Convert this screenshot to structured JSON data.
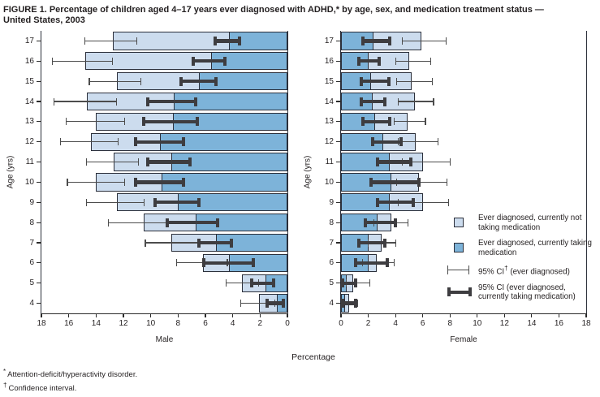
{
  "figure": {
    "title_line1": "FIGURE 1. Percentage of children aged 4–17 years ever diagnosed with ADHD,* by age, sex, and medication treatment status —",
    "title_line2": "United States, 2003",
    "footnotes": [
      {
        "marker": "*",
        "text": "Attention-deficit/hyperactivity disorder."
      },
      {
        "marker": "†",
        "text": "Confidence interval."
      }
    ]
  },
  "legend": {
    "items": [
      {
        "swatch": "light-box",
        "label": "Ever diagnosed, currently not taking medication"
      },
      {
        "swatch": "dark-box",
        "label": "Ever diagnosed, currently taking medication"
      },
      {
        "swatch": "thin-ci",
        "label": "95% CI† (ever diagnosed)"
      },
      {
        "swatch": "thick-ci",
        "label": "95% CI (ever diagnosed, currently taking medication)"
      }
    ]
  },
  "colors": {
    "light_blue": "#ccdcee",
    "medium_blue": "#7db3d9",
    "bar_border": "#2b2f3a",
    "axis": "#2b2b2b",
    "ci_thin": "#4c4c4c",
    "ci_thick": "#3e3d40",
    "text": "#231f20"
  },
  "chart_data": {
    "type": "bar",
    "variant": "paired horizontal stacked bars (population-pyramid style) with 95% CI error bars",
    "title": "FIGURE 1. Percentage of children aged 4–17 years ever diagnosed with ADHD,* by age, sex, and medication treatment status — United States, 2003",
    "xlabel": "Percentage",
    "ylabel": "Age (yrs)",
    "x_axis": {
      "min": 0,
      "max": 18,
      "ticks": [
        0,
        2,
        4,
        6,
        8,
        10,
        12,
        14,
        16,
        18
      ]
    },
    "ages": [
      17,
      16,
      15,
      14,
      13,
      12,
      11,
      10,
      9,
      8,
      7,
      6,
      5,
      4
    ],
    "series": [
      "Ever diagnosed, currently not taking medication",
      "Ever diagnosed, currently taking medication"
    ],
    "panels": [
      {
        "name": "Male",
        "side": "left",
        "tick_order_left_to_right": [
          18,
          16,
          14,
          12,
          10,
          8,
          6,
          4,
          2,
          0
        ],
        "rows": [
          {
            "age": 17,
            "ever_diagnosed_pct": 12.8,
            "taking_medication_pct": 4.3,
            "ci_ever": [
              11.0,
              14.8
            ],
            "ci_medication": [
              3.5,
              5.3
            ]
          },
          {
            "age": 16,
            "ever_diagnosed_pct": 14.8,
            "taking_medication_pct": 5.6,
            "ci_ever": [
              12.8,
              17.2
            ],
            "ci_medication": [
              4.6,
              6.9
            ]
          },
          {
            "age": 15,
            "ever_diagnosed_pct": 12.5,
            "taking_medication_pct": 6.5,
            "ci_ever": [
              10.7,
              14.5
            ],
            "ci_medication": [
              5.2,
              7.8
            ]
          },
          {
            "age": 14,
            "ever_diagnosed_pct": 14.7,
            "taking_medication_pct": 8.3,
            "ci_ever": [
              12.5,
              17.1
            ],
            "ci_medication": [
              6.7,
              10.2
            ]
          },
          {
            "age": 13,
            "ever_diagnosed_pct": 14.0,
            "taking_medication_pct": 8.4,
            "ci_ever": [
              11.9,
              16.2
            ],
            "ci_medication": [
              6.6,
              10.5
            ]
          },
          {
            "age": 12,
            "ever_diagnosed_pct": 14.4,
            "taking_medication_pct": 9.3,
            "ci_ever": [
              12.4,
              16.6
            ],
            "ci_medication": [
              7.6,
              11.1
            ]
          },
          {
            "age": 11,
            "ever_diagnosed_pct": 12.7,
            "taking_medication_pct": 8.5,
            "ci_ever": [
              10.9,
              14.7
            ],
            "ci_medication": [
              7.1,
              10.2
            ]
          },
          {
            "age": 10,
            "ever_diagnosed_pct": 14.0,
            "taking_medication_pct": 9.2,
            "ci_ever": [
              11.9,
              16.1
            ],
            "ci_medication": [
              7.6,
              11.1
            ]
          },
          {
            "age": 9,
            "ever_diagnosed_pct": 12.5,
            "taking_medication_pct": 8.0,
            "ci_ever": [
              10.5,
              14.7
            ],
            "ci_medication": [
              6.5,
              9.7
            ]
          },
          {
            "age": 8,
            "ever_diagnosed_pct": 10.5,
            "taking_medication_pct": 6.7,
            "ci_ever": [
              8.7,
              13.1
            ],
            "ci_medication": [
              5.1,
              8.8
            ]
          },
          {
            "age": 7,
            "ever_diagnosed_pct": 8.5,
            "taking_medication_pct": 5.2,
            "ci_ever": [
              6.4,
              10.4
            ],
            "ci_medication": [
              4.1,
              6.5
            ]
          },
          {
            "age": 6,
            "ever_diagnosed_pct": 6.2,
            "taking_medication_pct": 4.3,
            "ci_ever": [
              4.4,
              8.1
            ],
            "ci_medication": [
              2.5,
              6.1
            ]
          },
          {
            "age": 5,
            "ever_diagnosed_pct": 3.3,
            "taking_medication_pct": 1.6,
            "ci_ever": [
              2.1,
              4.5
            ],
            "ci_medication": [
              1.0,
              2.6
            ]
          },
          {
            "age": 4,
            "ever_diagnosed_pct": 2.1,
            "taking_medication_pct": 0.8,
            "ci_ever": [
              0.9,
              3.4
            ],
            "ci_medication": [
              0.3,
              1.5
            ]
          }
        ]
      },
      {
        "name": "Female",
        "side": "right",
        "tick_order_left_to_right": [
          0,
          2,
          4,
          6,
          8,
          10,
          12,
          14,
          16,
          18
        ],
        "rows": [
          {
            "age": 17,
            "ever_diagnosed_pct": 5.9,
            "taking_medication_pct": 2.4,
            "ci_ever": [
              4.5,
              7.7
            ],
            "ci_medication": [
              1.6,
              3.6
            ]
          },
          {
            "age": 16,
            "ever_diagnosed_pct": 5.0,
            "taking_medication_pct": 2.0,
            "ci_ever": [
              4.0,
              6.6
            ],
            "ci_medication": [
              1.3,
              2.8
            ]
          },
          {
            "age": 15,
            "ever_diagnosed_pct": 5.2,
            "taking_medication_pct": 2.2,
            "ci_ever": [
              4.1,
              6.7
            ],
            "ci_medication": [
              1.5,
              3.5
            ]
          },
          {
            "age": 14,
            "ever_diagnosed_pct": 5.4,
            "taking_medication_pct": 2.3,
            "ci_ever": [
              4.2,
              6.8
            ],
            "ci_medication": [
              1.5,
              3.2
            ]
          },
          {
            "age": 13,
            "ever_diagnosed_pct": 4.9,
            "taking_medication_pct": 2.5,
            "ci_ever": [
              3.9,
              6.2
            ],
            "ci_medication": [
              1.6,
              3.6
            ]
          },
          {
            "age": 12,
            "ever_diagnosed_pct": 5.5,
            "taking_medication_pct": 3.1,
            "ci_ever": [
              4.2,
              7.1
            ],
            "ci_medication": [
              2.3,
              4.4
            ]
          },
          {
            "age": 11,
            "ever_diagnosed_pct": 6.0,
            "taking_medication_pct": 3.6,
            "ci_ever": [
              4.5,
              8.0
            ],
            "ci_medication": [
              2.7,
              5.1
            ]
          },
          {
            "age": 10,
            "ever_diagnosed_pct": 5.7,
            "taking_medication_pct": 3.7,
            "ci_ever": [
              4.1,
              7.8
            ],
            "ci_medication": [
              2.2,
              5.7
            ]
          },
          {
            "age": 9,
            "ever_diagnosed_pct": 6.0,
            "taking_medication_pct": 3.6,
            "ci_ever": [
              4.2,
              7.9
            ],
            "ci_medication": [
              2.7,
              5.3
            ]
          },
          {
            "age": 8,
            "ever_diagnosed_pct": 3.7,
            "taking_medication_pct": 2.7,
            "ci_ever": [
              2.4,
              4.9
            ],
            "ci_medication": [
              1.8,
              4.0
            ]
          },
          {
            "age": 7,
            "ever_diagnosed_pct": 3.0,
            "taking_medication_pct": 2.0,
            "ci_ever": [
              2.0,
              4.0
            ],
            "ci_medication": [
              1.3,
              3.2
            ]
          },
          {
            "age": 6,
            "ever_diagnosed_pct": 2.6,
            "taking_medication_pct": 2.0,
            "ci_ever": [
              1.6,
              3.9
            ],
            "ci_medication": [
              1.1,
              3.4
            ]
          },
          {
            "age": 5,
            "ever_diagnosed_pct": 0.9,
            "taking_medication_pct": 0.4,
            "ci_ever": [
              0.4,
              2.1
            ],
            "ci_medication": [
              0.1,
              1.1
            ]
          },
          {
            "age": 4,
            "ever_diagnosed_pct": 0.6,
            "taking_medication_pct": 0.3,
            "ci_ever": [
              0.2,
              1.2
            ],
            "ci_medication": [
              0.1,
              1.1
            ]
          }
        ]
      }
    ]
  }
}
